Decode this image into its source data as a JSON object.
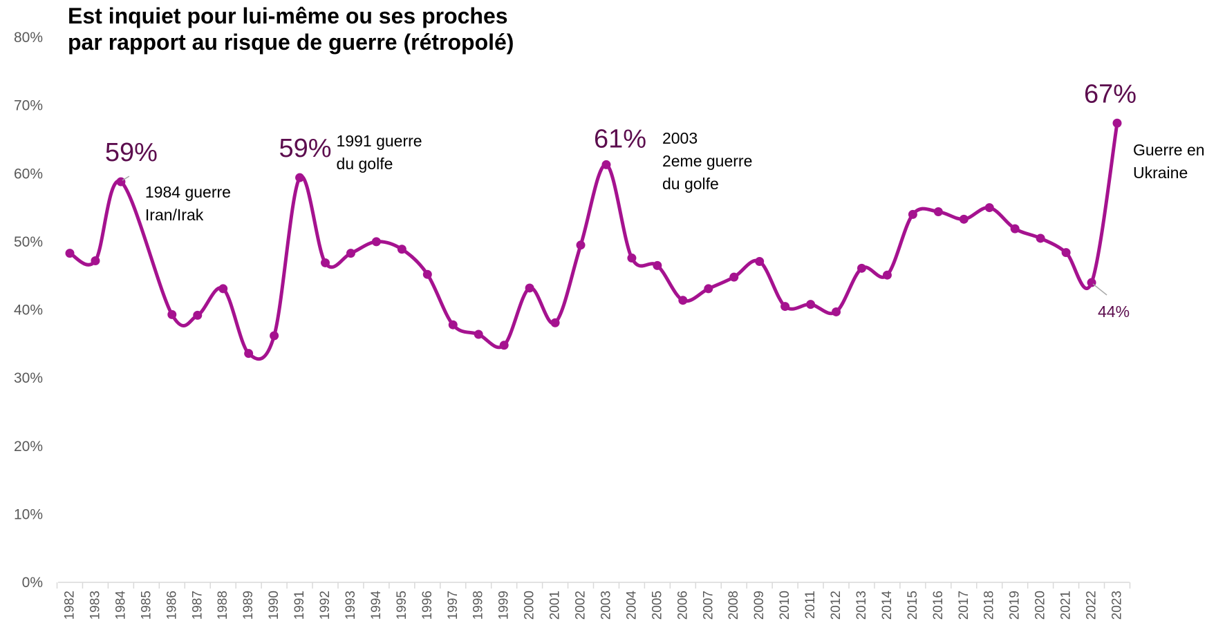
{
  "chart_data": {
    "type": "line",
    "title_lines": [
      "Est inquiet pour lui-même ou ses proches",
      "par rapport au risque de guerre (rétropolé)"
    ],
    "colors": {
      "line": "#a5128f",
      "value_labels": "#5c0d4e",
      "axis_text": "#595959",
      "axis_line": "#d9d9d9"
    },
    "y_ticks": [
      "0%",
      "10%",
      "20%",
      "30%",
      "40%",
      "50%",
      "60%",
      "70%",
      "80%"
    ],
    "ylim": [
      0,
      80
    ],
    "grid": false,
    "x": [
      "1982",
      "1983",
      "1984",
      "1985",
      "1986",
      "1987",
      "1988",
      "1989",
      "1990",
      "1991",
      "1992",
      "1993",
      "1994",
      "1995",
      "1996",
      "1997",
      "1998",
      "1999",
      "2000",
      "2001",
      "2002",
      "2003",
      "2004",
      "2005",
      "2006",
      "2007",
      "2008",
      "2009",
      "2010",
      "2011",
      "2012",
      "2013",
      "2014",
      "2015",
      "2016",
      "2017",
      "2018",
      "2019",
      "2020",
      "2021",
      "2022",
      "2023"
    ],
    "values": [
      48.3,
      47.2,
      58.8,
      null,
      39.3,
      39.2,
      43.1,
      33.6,
      36.2,
      59.4,
      46.9,
      48.3,
      50.0,
      48.9,
      45.2,
      37.8,
      36.4,
      34.8,
      43.2,
      38.1,
      49.5,
      61.3,
      47.6,
      46.5,
      41.4,
      43.1,
      44.8,
      47.1,
      40.5,
      40.8,
      39.7,
      46.1,
      45.1,
      54.0,
      54.4,
      53.3,
      55.0,
      51.9,
      50.5,
      48.4,
      44.0,
      67.4
    ],
    "value_labels": [
      {
        "year": "1984",
        "text": "59%"
      },
      {
        "year": "1991",
        "text": "59%"
      },
      {
        "year": "2003",
        "text": "61%"
      },
      {
        "year": "2022",
        "text": "44%"
      },
      {
        "year": "2023",
        "text": "67%"
      }
    ],
    "annotations": [
      {
        "year": "1984",
        "lines": [
          "1984 guerre",
          "Iran/Irak"
        ]
      },
      {
        "year": "1991",
        "lines": [
          "1991 guerre",
          "du golfe"
        ]
      },
      {
        "year": "2003",
        "lines": [
          "2003",
          "2eme guerre",
          "du golfe"
        ]
      },
      {
        "year": "2023",
        "lines": [
          "Guerre en",
          "Ukraine"
        ]
      }
    ]
  }
}
